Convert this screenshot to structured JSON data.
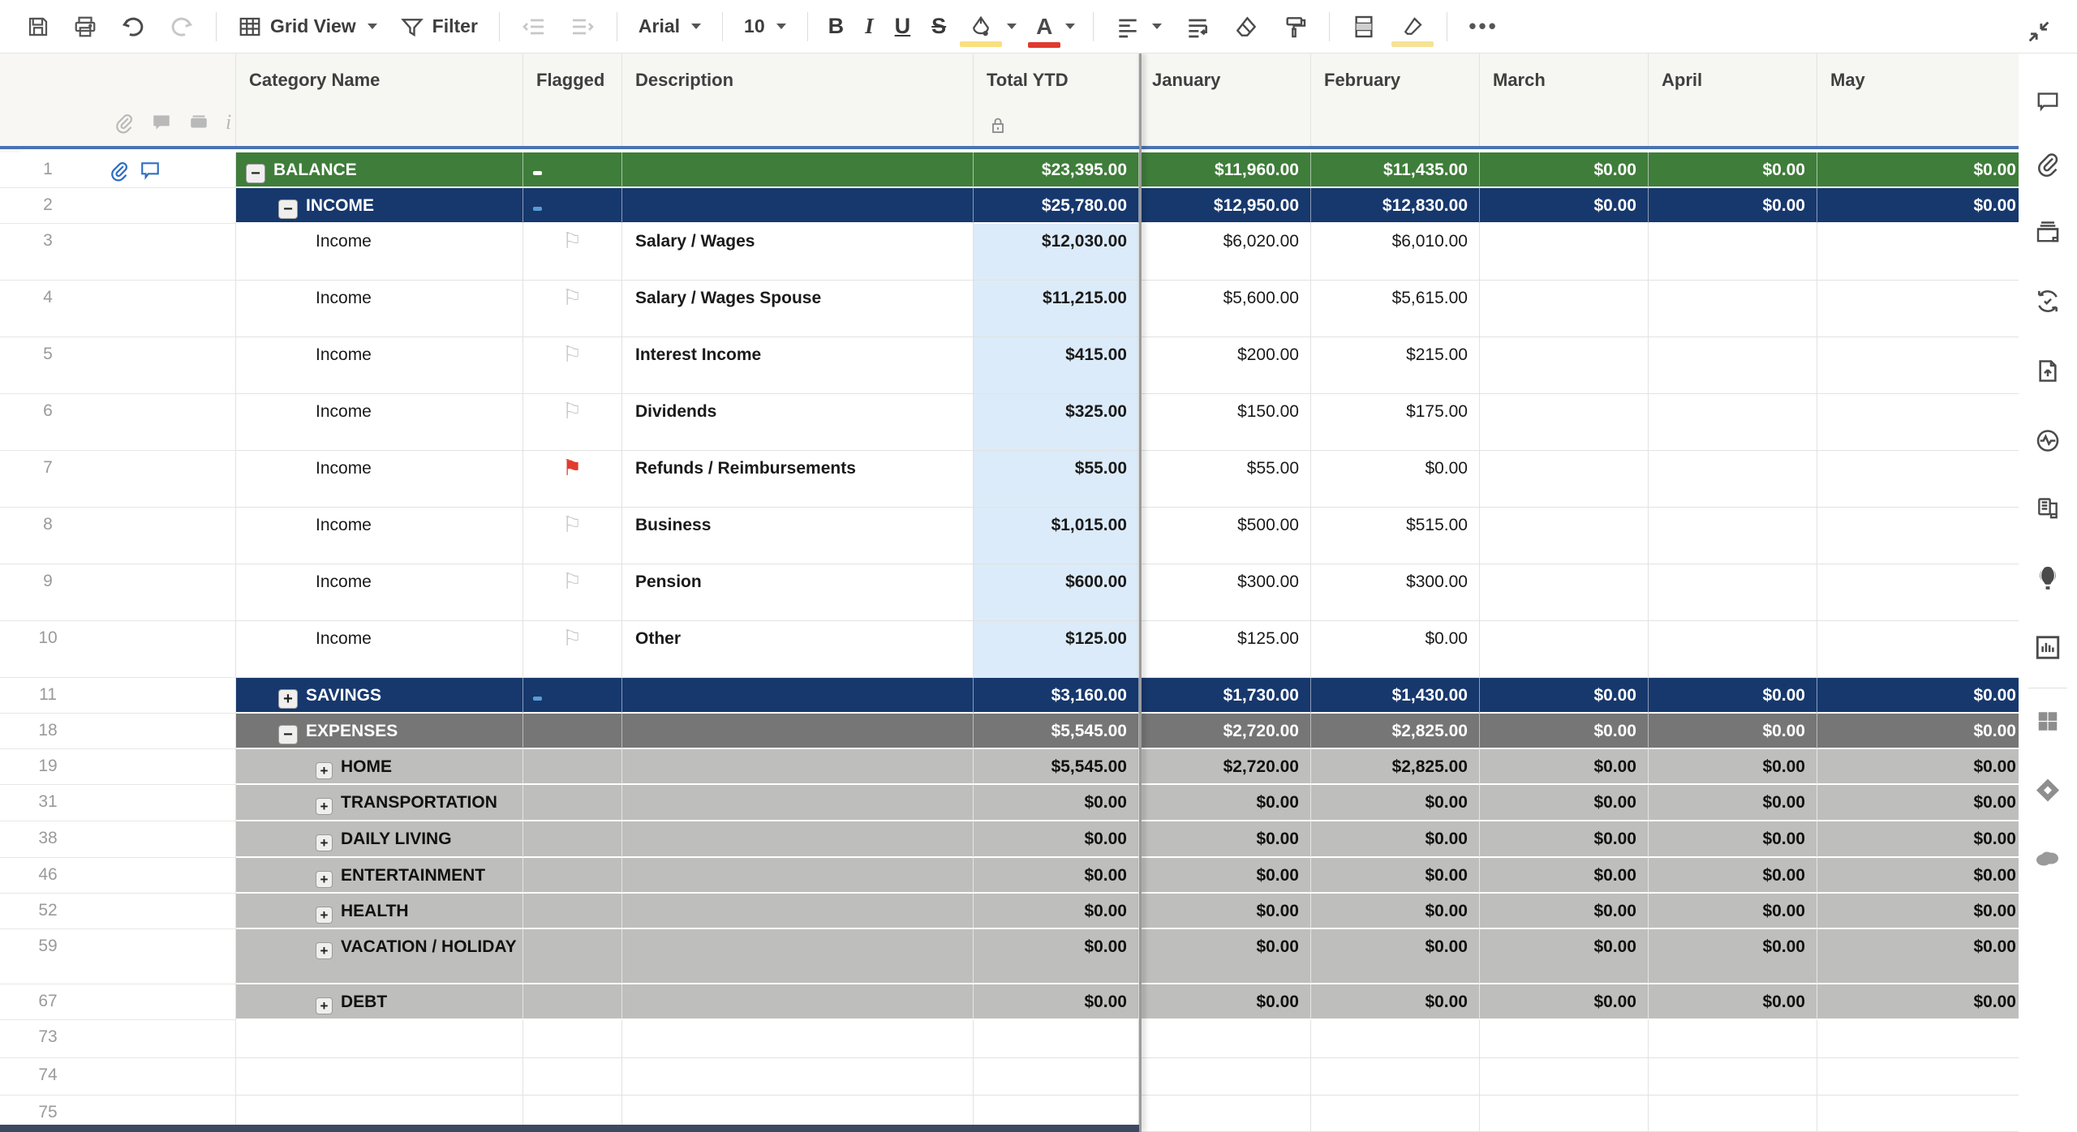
{
  "toolbar": {
    "view_label": "Grid View",
    "filter_label": "Filter",
    "font_name": "Arial",
    "font_size": "10",
    "bold": "B",
    "italic": "I",
    "underline": "U",
    "strike": "S",
    "more": "•••"
  },
  "colors": {
    "balance_green": "#3f7d3a",
    "income_navy": "#17386d",
    "expenses_dark_gray": "#767676",
    "expense_light_gray": "#bebebd",
    "total_ytd_blue": "#dcebf9",
    "header_divider_blue": "#4a73b3",
    "flag_red": "#e23b2e",
    "row_icon_blue": "#2f6fc2",
    "fill_swatch_yellow": "#f9e07f",
    "fontcolor_swatch_red": "#e03a2f",
    "highlight_swatch_yellow": "#f6e296"
  },
  "grid": {
    "columns": [
      "Category Name",
      "Flagged",
      "Description",
      "Total YTD",
      "January",
      "February",
      "March",
      "April",
      "May"
    ],
    "rows": [
      {
        "num": "1",
        "style": "green",
        "h": 44,
        "indent": 0,
        "toggle": "−",
        "cat": "BALANCE",
        "flag": "dashw",
        "desc": "",
        "ytd": "$23,395.00",
        "months": [
          "$11,960.00",
          "$11,435.00",
          "$0.00",
          "$0.00",
          "$0.00"
        ],
        "icons": [
          "clip",
          "comment"
        ]
      },
      {
        "num": "2",
        "style": "navy",
        "h": 44,
        "indent": 1,
        "toggle": "−",
        "cat": "INCOME",
        "flag": "dashb",
        "desc": "",
        "ytd": "$25,780.00",
        "months": [
          "$12,950.00",
          "$12,830.00",
          "$0.00",
          "$0.00",
          "$0.00"
        ],
        "icons": []
      },
      {
        "num": "3",
        "style": "plain",
        "h": 70,
        "indent": 2,
        "toggle": "",
        "cat": "Income",
        "flag": "flag",
        "desc": "Salary / Wages",
        "ytd": "$12,030.00",
        "months": [
          "$6,020.00",
          "$6,010.00",
          "",
          "",
          ""
        ],
        "icons": []
      },
      {
        "num": "4",
        "style": "plain",
        "h": 70,
        "indent": 2,
        "toggle": "",
        "cat": "Income",
        "flag": "flag",
        "desc": "Salary / Wages Spouse",
        "ytd": "$11,215.00",
        "months": [
          "$5,600.00",
          "$5,615.00",
          "",
          "",
          ""
        ],
        "icons": []
      },
      {
        "num": "5",
        "style": "plain",
        "h": 70,
        "indent": 2,
        "toggle": "",
        "cat": "Income",
        "flag": "flag",
        "desc": "Interest Income",
        "ytd": "$415.00",
        "months": [
          "$200.00",
          "$215.00",
          "",
          "",
          ""
        ],
        "icons": []
      },
      {
        "num": "6",
        "style": "plain",
        "h": 70,
        "indent": 2,
        "toggle": "",
        "cat": "Income",
        "flag": "flag",
        "desc": "Dividends",
        "ytd": "$325.00",
        "months": [
          "$150.00",
          "$175.00",
          "",
          "",
          ""
        ],
        "icons": []
      },
      {
        "num": "7",
        "style": "plain",
        "h": 70,
        "indent": 2,
        "toggle": "",
        "cat": "Income",
        "flag": "flagred",
        "desc": "Refunds / Reimbursements",
        "ytd": "$55.00",
        "months": [
          "$55.00",
          "$0.00",
          "",
          "",
          ""
        ],
        "icons": []
      },
      {
        "num": "8",
        "style": "plain",
        "h": 70,
        "indent": 2,
        "toggle": "",
        "cat": "Income",
        "flag": "flag",
        "desc": "Business",
        "ytd": "$1,015.00",
        "months": [
          "$500.00",
          "$515.00",
          "",
          "",
          ""
        ],
        "icons": []
      },
      {
        "num": "9",
        "style": "plain",
        "h": 70,
        "indent": 2,
        "toggle": "",
        "cat": "Income",
        "flag": "flag",
        "desc": "Pension",
        "ytd": "$600.00",
        "months": [
          "$300.00",
          "$300.00",
          "",
          "",
          ""
        ],
        "icons": []
      },
      {
        "num": "10",
        "style": "plain",
        "h": 70,
        "indent": 2,
        "toggle": "",
        "cat": "Income",
        "flag": "flag",
        "desc": "Other",
        "ytd": "$125.00",
        "months": [
          "$125.00",
          "$0.00",
          "",
          "",
          ""
        ],
        "icons": []
      },
      {
        "num": "11",
        "style": "navy",
        "h": 44,
        "indent": 1,
        "toggle": "+",
        "cat": "SAVINGS",
        "flag": "dashb",
        "desc": "",
        "ytd": "$3,160.00",
        "months": [
          "$1,730.00",
          "$1,430.00",
          "$0.00",
          "$0.00",
          "$0.00"
        ],
        "icons": []
      },
      {
        "num": "18",
        "style": "gdark",
        "h": 44,
        "indent": 1,
        "toggle": "−",
        "cat": "EXPENSES",
        "flag": "",
        "desc": "",
        "ytd": "$5,545.00",
        "months": [
          "$2,720.00",
          "$2,825.00",
          "$0.00",
          "$0.00",
          "$0.00"
        ],
        "icons": []
      },
      {
        "num": "19",
        "style": "glight",
        "h": 44,
        "indent": 2,
        "toggle": "+",
        "cat": "HOME",
        "flag": "",
        "desc": "",
        "ytd": "$5,545.00",
        "months": [
          "$2,720.00",
          "$2,825.00",
          "$0.00",
          "$0.00",
          "$0.00"
        ],
        "icons": []
      },
      {
        "num": "31",
        "style": "glight",
        "h": 45,
        "indent": 2,
        "toggle": "+",
        "cat": "TRANSPORTATION",
        "flag": "",
        "desc": "",
        "ytd": "$0.00",
        "months": [
          "$0.00",
          "$0.00",
          "$0.00",
          "$0.00",
          "$0.00"
        ],
        "icons": []
      },
      {
        "num": "38",
        "style": "glight",
        "h": 45,
        "indent": 2,
        "toggle": "+",
        "cat": "DAILY LIVING",
        "flag": "",
        "desc": "",
        "ytd": "$0.00",
        "months": [
          "$0.00",
          "$0.00",
          "$0.00",
          "$0.00",
          "$0.00"
        ],
        "icons": []
      },
      {
        "num": "46",
        "style": "glight",
        "h": 44,
        "indent": 2,
        "toggle": "+",
        "cat": "ENTERTAINMENT",
        "flag": "",
        "desc": "",
        "ytd": "$0.00",
        "months": [
          "$0.00",
          "$0.00",
          "$0.00",
          "$0.00",
          "$0.00"
        ],
        "icons": []
      },
      {
        "num": "52",
        "style": "glight",
        "h": 44,
        "indent": 2,
        "toggle": "+",
        "cat": "HEALTH",
        "flag": "",
        "desc": "",
        "ytd": "$0.00",
        "months": [
          "$0.00",
          "$0.00",
          "$0.00",
          "$0.00",
          "$0.00"
        ],
        "icons": []
      },
      {
        "num": "59",
        "style": "glight",
        "h": 68,
        "indent": 2,
        "toggle": "+",
        "cat": "VACATION / HOLIDAY",
        "flag": "",
        "desc": "",
        "ytd": "$0.00",
        "months": [
          "$0.00",
          "$0.00",
          "$0.00",
          "$0.00",
          "$0.00"
        ],
        "icons": []
      },
      {
        "num": "67",
        "style": "glight",
        "h": 44,
        "indent": 2,
        "toggle": "+",
        "cat": "DEBT",
        "flag": "",
        "desc": "",
        "ytd": "$0.00",
        "months": [
          "$0.00",
          "$0.00",
          "$0.00",
          "$0.00",
          "$0.00"
        ],
        "icons": []
      },
      {
        "num": "73",
        "style": "plainempty",
        "h": 47,
        "indent": 0,
        "toggle": "",
        "cat": "",
        "flag": "",
        "desc": "",
        "ytd": "",
        "months": [
          "",
          "",
          "",
          "",
          ""
        ],
        "icons": []
      },
      {
        "num": "74",
        "style": "plainempty",
        "h": 46,
        "indent": 0,
        "toggle": "",
        "cat": "",
        "flag": "",
        "desc": "",
        "ytd": "",
        "months": [
          "",
          "",
          "",
          "",
          ""
        ],
        "icons": []
      },
      {
        "num": "75",
        "style": "plainempty",
        "h": 45,
        "indent": 0,
        "toggle": "",
        "cat": "",
        "flag": "",
        "desc": "",
        "ytd": "",
        "months": [
          "",
          "",
          "",
          "",
          ""
        ],
        "icons": []
      }
    ]
  },
  "sidebar": {
    "icons": [
      "conversations-icon",
      "attachments-icon",
      "proofs-icon",
      "update-requests-icon",
      "publish-icon",
      "activity-log-icon",
      "summary-icon",
      "whats-new-icon",
      "insights-icon",
      "apps-icon",
      "brandfolder-icon",
      "salesforce-icon"
    ]
  }
}
